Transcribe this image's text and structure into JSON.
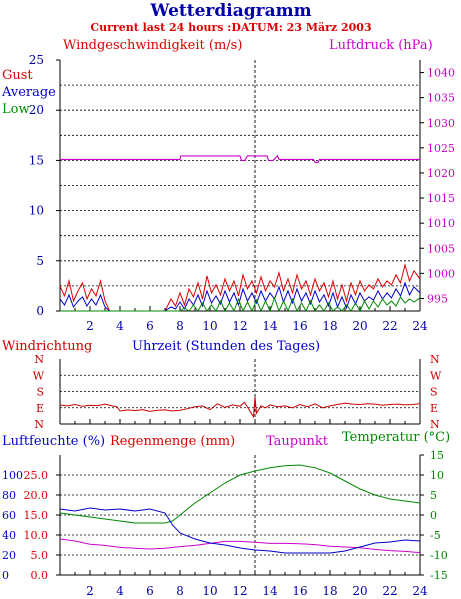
{
  "header": {
    "title": "Wetterdiagramm",
    "subtitle": "Current last 24 hours :DATUM: 23 März 2003"
  },
  "colors": {
    "gust": "#dd0000",
    "average": "#0000cc",
    "low": "#008800",
    "pressure": "#cc00cc",
    "axis": "#000000",
    "grid": "#000000",
    "tick_blue": "#0000aa",
    "direction": "#cc0000",
    "dew": "#cc00cc",
    "temperature": "#008800",
    "humidity": "#0000cc",
    "rain": "#dd0000"
  },
  "chart_data": [
    {
      "id": "wind",
      "type": "line",
      "title": "",
      "left_label": "Windgeschwindigkeit (m/s)",
      "right_label": "Luftdruck (hPa)",
      "legend": [
        "Gust",
        "Average",
        "Low"
      ],
      "x_range": [
        0,
        24
      ],
      "x_ticks": [
        "2",
        "4",
        "6",
        "8",
        "10",
        "12",
        "14",
        "16",
        "18",
        "20",
        "22",
        "24"
      ],
      "y_left_range": [
        0,
        25
      ],
      "y_left_ticks": [
        "0",
        "5",
        "10",
        "15",
        "20",
        "25"
      ],
      "y_right_range": [
        992.5,
        1042.5
      ],
      "y_right_ticks": [
        "995",
        "1000",
        "1005",
        "1010",
        "1015",
        "1020",
        "1025",
        "1030",
        "1035",
        "1040"
      ],
      "grid": true,
      "marker_hour": 13,
      "series": [
        {
          "name": "Gust",
          "color": "#dd0000",
          "x": [
            0,
            0.3,
            0.6,
            0.9,
            1.2,
            1.5,
            1.8,
            2.1,
            2.4,
            2.7,
            3.0,
            3.3,
            3.6,
            4,
            5,
            6,
            7,
            7.4,
            7.7,
            8.0,
            8.3,
            8.6,
            8.9,
            9.2,
            9.5,
            9.8,
            10.1,
            10.4,
            10.7,
            11.0,
            11.3,
            11.6,
            11.9,
            12.2,
            12.5,
            12.8,
            13.1,
            13.4,
            13.7,
            14.0,
            14.3,
            14.6,
            14.9,
            15.2,
            15.5,
            15.8,
            16.1,
            16.4,
            16.7,
            17.0,
            17.3,
            17.6,
            17.9,
            18.2,
            18.5,
            18.8,
            19.1,
            19.4,
            19.7,
            20.0,
            20.3,
            20.6,
            20.9,
            21.2,
            21.5,
            21.8,
            22.1,
            22.4,
            22.7,
            23.0,
            23.3,
            23.6,
            24
          ],
          "y": [
            2.5,
            1.5,
            3.0,
            1.0,
            2.0,
            2.8,
            1.2,
            2.2,
            1.5,
            3.0,
            1.0,
            0,
            0,
            0,
            0,
            0,
            0,
            1.2,
            0.5,
            1.8,
            0.6,
            2.2,
            1.4,
            2.8,
            1.2,
            3.5,
            1.8,
            2.6,
            1.6,
            3.2,
            2.0,
            3.0,
            1.5,
            3.6,
            2.2,
            3.0,
            1.8,
            3.4,
            2.0,
            3.0,
            2.4,
            3.8,
            2.0,
            3.2,
            1.8,
            3.6,
            2.2,
            3.0,
            1.6,
            3.2,
            2.0,
            2.8,
            1.4,
            3.0,
            1.2,
            2.6,
            1.0,
            2.8,
            1.6,
            3.0,
            2.0,
            2.6,
            2.2,
            3.2,
            2.4,
            3.0,
            2.6,
            3.6,
            2.8,
            4.6,
            3.0,
            4.0,
            3.2
          ]
        },
        {
          "name": "Average",
          "color": "#0000cc",
          "x": [
            0,
            0.3,
            0.6,
            0.9,
            1.2,
            1.5,
            1.8,
            2.1,
            2.4,
            2.7,
            3.0,
            3.3,
            3.6,
            4,
            5,
            6,
            7,
            7.4,
            7.7,
            8.0,
            8.3,
            8.6,
            8.9,
            9.2,
            9.5,
            9.8,
            10.1,
            10.4,
            10.7,
            11.0,
            11.3,
            11.6,
            11.9,
            12.2,
            12.5,
            12.8,
            13.1,
            13.4,
            13.7,
            14.0,
            14.3,
            14.6,
            14.9,
            15.2,
            15.5,
            15.8,
            16.1,
            16.4,
            16.7,
            17.0,
            17.3,
            17.6,
            17.9,
            18.2,
            18.5,
            18.8,
            19.1,
            19.4,
            19.7,
            20.0,
            20.3,
            20.6,
            20.9,
            21.2,
            21.5,
            21.8,
            22.1,
            22.4,
            22.7,
            23.0,
            23.3,
            23.6,
            24
          ],
          "y": [
            1.2,
            0.6,
            1.6,
            0.4,
            1.0,
            1.4,
            0.5,
            1.2,
            0.6,
            1.6,
            0.4,
            0,
            0,
            0,
            0,
            0,
            0,
            0.4,
            0.2,
            0.9,
            0.2,
            1.2,
            0.6,
            1.6,
            0.5,
            2.0,
            0.8,
            1.5,
            0.7,
            2.0,
            0.9,
            1.8,
            0.6,
            2.2,
            1.0,
            1.8,
            0.8,
            2.0,
            1.0,
            1.8,
            1.2,
            2.4,
            0.9,
            2.0,
            0.8,
            2.2,
            1.0,
            1.8,
            0.7,
            2.0,
            0.9,
            1.6,
            0.5,
            1.8,
            0.4,
            1.4,
            0.3,
            1.6,
            0.7,
            1.8,
            1.0,
            1.4,
            1.1,
            2.0,
            1.2,
            1.8,
            1.3,
            2.2,
            1.5,
            2.8,
            1.6,
            2.4,
            1.8
          ]
        },
        {
          "name": "Low",
          "color": "#008800",
          "x": [
            0,
            3.5,
            4,
            5,
            6,
            7,
            8.0,
            8.3,
            8.6,
            8.9,
            9.2,
            9.5,
            9.8,
            10.1,
            10.4,
            10.7,
            11.0,
            11.3,
            11.6,
            11.9,
            12.2,
            12.5,
            12.8,
            13.1,
            13.4,
            13.7,
            14.0,
            14.3,
            14.6,
            14.9,
            15.2,
            15.5,
            15.8,
            16.1,
            16.4,
            16.7,
            17.0,
            17.3,
            17.6,
            17.9,
            18.2,
            18.5,
            18.8,
            19.1,
            19.4,
            19.7,
            20.0,
            20.3,
            20.6,
            20.9,
            21.2,
            21.5,
            21.8,
            22.1,
            22.4,
            22.7,
            23.0,
            23.3,
            23.6,
            24
          ],
          "y": [
            0,
            0,
            0,
            0,
            0,
            0,
            0,
            0.3,
            0,
            0.6,
            0,
            0.8,
            0,
            0.6,
            0,
            1.0,
            0,
            0.8,
            0,
            1.2,
            0,
            0.9,
            0,
            1.1,
            0,
            1.0,
            0,
            1.3,
            0,
            1.0,
            0,
            1.2,
            0,
            0.8,
            0,
            1.0,
            0,
            0.6,
            0,
            0.8,
            0,
            0.4,
            0,
            0.6,
            0,
            0.8,
            0,
            1.0,
            0.2,
            1.0,
            0.4,
            1.2,
            0.6,
            1.0,
            0.5,
            1.4,
            0.8,
            1.2,
            0.9,
            1.3
          ]
        },
        {
          "name": "Luftdruck",
          "axis": "right",
          "color": "#cc00cc",
          "x": [
            0,
            8.0,
            8.05,
            12.0,
            12.1,
            12.3,
            12.5,
            12.7,
            13.8,
            13.9,
            14.2,
            14.5,
            14.6,
            16.9,
            17.0,
            17.2,
            17.3,
            24
          ],
          "y": [
            1022.7,
            1022.7,
            1023.4,
            1023.4,
            1022.5,
            1022.5,
            1023.4,
            1023.4,
            1023.4,
            1022.5,
            1022.5,
            1023.4,
            1022.7,
            1022.7,
            1022.1,
            1022.1,
            1022.7,
            1022.7
          ]
        }
      ]
    },
    {
      "id": "direction",
      "type": "line",
      "title": "",
      "left_label": "Windrichtung",
      "center_label": "Uhrzeit (Stunden des Tages)",
      "y_ticks": [
        "N",
        "W",
        "S",
        "E",
        "N"
      ],
      "y_range": [
        0,
        360
      ],
      "x_range": [
        0,
        24
      ],
      "grid": true,
      "marker_hour": 13,
      "series": [
        {
          "name": "Windrichtung",
          "color": "#cc0000",
          "x": [
            0,
            0.5,
            1,
            1.5,
            2,
            2.5,
            3,
            3.5,
            3.8,
            4,
            4.5,
            5,
            5.5,
            6,
            6.5,
            7,
            7.5,
            8,
            8.5,
            9,
            9.5,
            10,
            10.5,
            11,
            11.5,
            12,
            12.3,
            12.6,
            12.9,
            13.0,
            13.1,
            13.4,
            13.7,
            14,
            14.5,
            15,
            15.5,
            16,
            16.5,
            17,
            17.5,
            18,
            18.5,
            19,
            19.5,
            20,
            20.5,
            21,
            21.5,
            22,
            22.5,
            23,
            23.5,
            24
          ],
          "y": [
            105,
            100,
            108,
            98,
            104,
            102,
            110,
            100,
            95,
            72,
            78,
            74,
            80,
            70,
            76,
            78,
            72,
            76,
            85,
            95,
            100,
            80,
            112,
            92,
            106,
            98,
            120,
            80,
            40,
            150,
            60,
            100,
            90,
            106,
            95,
            100,
            90,
            108,
            96,
            112,
            90,
            100,
            108,
            116,
            110,
            108,
            112,
            110,
            104,
            108,
            110,
            106,
            108,
            112
          ]
        }
      ]
    },
    {
      "id": "humidity_temp",
      "type": "line",
      "title": "",
      "labels": [
        "Luftfeuchte (%)",
        "Regenmenge (mm)",
        "Taupunkt",
        "Temperatur (°C)"
      ],
      "x_range": [
        0,
        24
      ],
      "x_ticks": [
        "2",
        "4",
        "6",
        "8",
        "10",
        "12",
        "14",
        "16",
        "18",
        "20",
        "22",
        "24"
      ],
      "y_humidity_ticks": [
        "0",
        "20",
        "40",
        "60",
        "80",
        "100"
      ],
      "y_rain_ticks": [
        "0.0",
        "5.0",
        "10.0",
        "15.0",
        "20.0",
        "25.0"
      ],
      "y_temp_ticks": [
        "-15",
        "-10",
        "-5",
        "0",
        "5",
        "10",
        "15"
      ],
      "y_temp_range": [
        -15,
        15
      ],
      "grid": true,
      "marker_hour": 13,
      "series": [
        {
          "name": "Luftfeuchte",
          "color": "#0000cc",
          "axis": "humidity",
          "x": [
            0,
            1,
            2,
            3,
            4,
            5,
            6,
            7,
            7.5,
            8,
            9,
            10,
            11,
            12,
            13,
            14,
            15,
            16,
            17,
            18,
            19,
            20,
            21,
            22,
            23,
            24
          ],
          "y": [
            66,
            64,
            67,
            65,
            66,
            64,
            66,
            62,
            50,
            42,
            36,
            32,
            30,
            27,
            25,
            24,
            22,
            22,
            22,
            22,
            24,
            28,
            32,
            33,
            35,
            34
          ]
        },
        {
          "name": "Taupunkt",
          "color": "#cc00cc",
          "axis": "temperature",
          "x": [
            0,
            1,
            2,
            3,
            4,
            5,
            6,
            7,
            8,
            9,
            10,
            11,
            12,
            13,
            14,
            15,
            16,
            17,
            18,
            19,
            20,
            21,
            22,
            23,
            24
          ],
          "y": [
            -6,
            -6.5,
            -7.3,
            -7.6,
            -8.1,
            -8.3,
            -8.5,
            -8.3,
            -7.9,
            -7.6,
            -7.1,
            -6.6,
            -6.6,
            -6.8,
            -7.1,
            -7.1,
            -7.2,
            -7.4,
            -7.8,
            -8.0,
            -8.2,
            -8.6,
            -8.9,
            -9.1,
            -9.4
          ]
        },
        {
          "name": "Temperatur",
          "color": "#008800",
          "axis": "temperature",
          "x": [
            0,
            1,
            2,
            3,
            4,
            5,
            6,
            7,
            7.5,
            8,
            9,
            10,
            11,
            12,
            13,
            14,
            15,
            16,
            17,
            18,
            19,
            20,
            21,
            22,
            23,
            24
          ],
          "y": [
            0.5,
            0,
            -0.5,
            -1,
            -1.5,
            -2,
            -2,
            -2,
            -1.5,
            0,
            3,
            5.5,
            8,
            10,
            11,
            11.8,
            12.3,
            12.5,
            11.8,
            10.5,
            8.5,
            6.5,
            5,
            4,
            3.5,
            3
          ]
        }
      ]
    }
  ]
}
